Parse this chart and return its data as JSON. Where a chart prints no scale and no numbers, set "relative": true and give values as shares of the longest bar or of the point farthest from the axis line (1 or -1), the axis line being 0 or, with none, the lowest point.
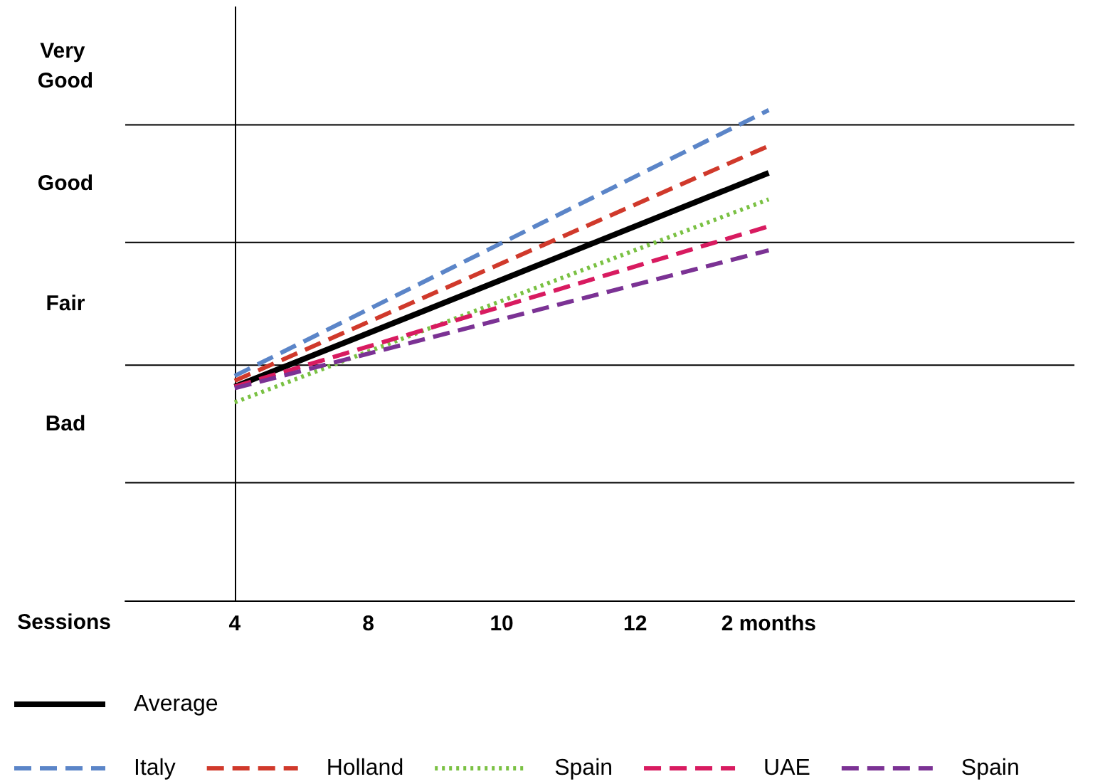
{
  "chart_data": {
    "type": "line",
    "xlabel": "Sessions",
    "categories": [
      "4",
      "8",
      "10",
      "12",
      "2 months"
    ],
    "relative": true,
    "ref_lines": [
      {
        "axis": "y",
        "value": 0.24
      },
      {
        "axis": "y",
        "value": 0.48
      },
      {
        "axis": "y",
        "value": 0.73
      },
      {
        "axis": "y",
        "value": 0.97
      }
    ],
    "annotations": [
      "Bad",
      "Fair",
      "Good",
      "Very Good"
    ],
    "legend": "bottom",
    "marker": "none",
    "series": [
      {
        "name": "Average",
        "color": "#000000",
        "line_style": "solid",
        "values": [
          0.436,
          null,
          null,
          null,
          0.872
        ]
      },
      {
        "name": "Italy",
        "color": "#5b85c8",
        "line_style": "dashed",
        "values": [
          0.458,
          null,
          null,
          null,
          1
        ]
      },
      {
        "name": "Holland",
        "color": "#d0392b",
        "line_style": "dashed",
        "values": [
          0.448,
          null,
          null,
          null,
          0.927
        ]
      },
      {
        "name": "Spain",
        "color": "#7ac143",
        "line_style": "dotted",
        "values": [
          0.404,
          null,
          null,
          null,
          0.818
        ]
      },
      {
        "name": "UAE",
        "color": "#d81b60",
        "line_style": "dashed",
        "values": [
          0.436,
          null,
          null,
          null,
          0.763
        ]
      },
      {
        "name": "Spain",
        "color": "#7b3294",
        "line_style": "dashed",
        "values": [
          0.433,
          null,
          null,
          null,
          0.714
        ]
      }
    ]
  }
}
